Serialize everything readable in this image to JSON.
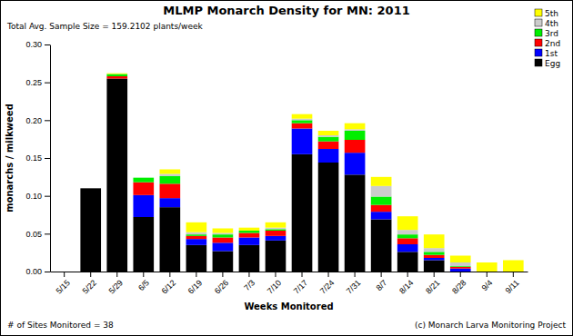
{
  "chart_data": {
    "type": "bar",
    "title": "MLMP Monarch Density for MN: 2011",
    "subtitle": "Total Avg. Sample Size = 159.2102 plants/week",
    "x_label": "Weeks Monitored",
    "y_label": "monarchs / milkweed",
    "annotations": [
      "# of Sites Monitored = 38",
      "(c) Monarch Larva Monitoring Project"
    ],
    "categories": [
      "5/15",
      "5/22",
      "5/29",
      "6/5",
      "6/12",
      "6/19",
      "6/26",
      "7/3",
      "7/10",
      "7/17",
      "7/24",
      "7/31",
      "8/7",
      "8/14",
      "8/21",
      "8/28",
      "9/4",
      "9/11"
    ],
    "series": [
      {
        "name": "Egg",
        "color": "#000000",
        "values": [
          0,
          0.11,
          0.255,
          0.072,
          0.085,
          0.035,
          0.027,
          0.035,
          0.041,
          0.155,
          0.144,
          0.128,
          0.069,
          0.026,
          0.015,
          0,
          0,
          0
        ]
      },
      {
        "name": "1st",
        "color": "#0000ff",
        "values": [
          0,
          0,
          0,
          0.029,
          0.012,
          0.008,
          0.011,
          0.01,
          0.006,
          0.034,
          0.018,
          0.029,
          0.01,
          0.01,
          0.003,
          0.004,
          0,
          0
        ]
      },
      {
        "name": "2nd",
        "color": "#ff0000",
        "values": [
          0,
          0,
          0.003,
          0.017,
          0.019,
          0.004,
          0.007,
          0.006,
          0.007,
          0.007,
          0.01,
          0.017,
          0.009,
          0.008,
          0.004,
          0.002,
          0,
          0
        ]
      },
      {
        "name": "3rd",
        "color": "#00ee00",
        "values": [
          0,
          0,
          0.003,
          0.006,
          0.01,
          0.002,
          0.004,
          0.003,
          0.002,
          0.004,
          0.006,
          0.012,
          0.011,
          0.005,
          0.004,
          0.001,
          0,
          0
        ]
      },
      {
        "name": "4th",
        "color": "#cccccc",
        "values": [
          0,
          0,
          0,
          0,
          0.003,
          0.003,
          0.002,
          0,
          0.002,
          0.002,
          0.002,
          0.002,
          0.014,
          0.006,
          0.005,
          0.005,
          0,
          0
        ]
      },
      {
        "name": "5th",
        "color": "#ffff00",
        "values": [
          0,
          0,
          0.001,
          0,
          0.006,
          0.013,
          0.006,
          0.004,
          0.007,
          0.006,
          0.006,
          0.008,
          0.012,
          0.018,
          0.018,
          0.009,
          0.012,
          0.015
        ]
      }
    ],
    "stacked": true,
    "grid": false,
    "legend": "top-right",
    "ylim": [
      0,
      0.3
    ],
    "yticks": [
      {
        "value": 0,
        "label": "0.00"
      },
      {
        "value": 0.05,
        "label": "0.05"
      },
      {
        "value": 0.1,
        "label": "0.10"
      },
      {
        "value": 0.15,
        "label": "0.15"
      },
      {
        "value": 0.2,
        "label": "0.20"
      },
      {
        "value": 0.25,
        "label": "0.25"
      },
      {
        "value": 0.3,
        "label": "0.30"
      }
    ]
  }
}
